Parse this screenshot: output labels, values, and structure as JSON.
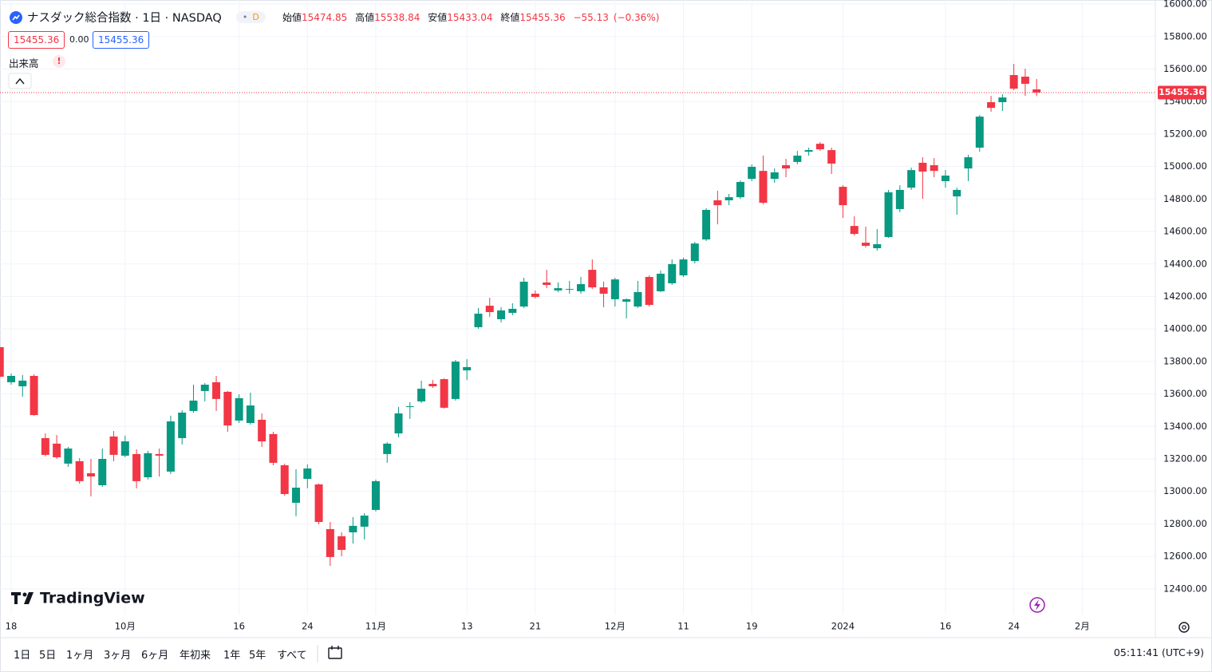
{
  "header": {
    "symbol": "ナスダック総合指数 · 1日 · NASDAQ",
    "interval_badge": "D",
    "open_label": "始値",
    "open": "15474.85",
    "high_label": "高値",
    "high": "15538.84",
    "low_label": "安値",
    "low": "15433.04",
    "close_label": "終値",
    "close": "15455.36",
    "change": "−55.13",
    "change_pct": "(−0.36%)"
  },
  "order_boxes": [
    "15455.36",
    "0.00",
    "15455.36"
  ],
  "volume_label": "出来高",
  "volume_warning": "!",
  "logo": "TradingView",
  "ranges": [
    "1日",
    "5日",
    "1ヶ月",
    "3ヶ月",
    "6ヶ月",
    "年初来",
    "1年",
    "5年",
    "すべて"
  ],
  "clock": "05:11:41 (UTC+9)",
  "chart_data": {
    "type": "candlestick",
    "categories": [
      null,
      "18",
      null,
      null,
      null,
      null,
      null,
      null,
      null,
      null,
      null,
      "10月",
      null,
      null,
      null,
      null,
      null,
      null,
      null,
      null,
      null,
      "16",
      null,
      null,
      null,
      null,
      null,
      "24",
      null,
      null,
      null,
      null,
      null,
      "11月",
      null,
      null,
      null,
      null,
      null,
      null,
      null,
      "13",
      null,
      null,
      null,
      null,
      null,
      "21",
      null,
      null,
      null,
      null,
      null,
      null,
      "12月",
      null,
      null,
      null,
      null,
      null,
      "11",
      null,
      null,
      null,
      null,
      null,
      "19",
      null,
      null,
      null,
      null,
      null,
      null,
      null,
      "2024",
      null,
      null,
      null,
      null,
      null,
      null,
      null,
      null,
      "16",
      null,
      null,
      null,
      null,
      null,
      "24",
      null,
      null,
      null,
      null,
      null,
      "2月"
    ],
    "open": [
      13888,
      13672,
      13647,
      13711,
      13328,
      13294,
      13171,
      13186,
      13112,
      13038,
      13338,
      13220,
      13230,
      13087,
      13230,
      13122,
      13328,
      13495,
      13618,
      13672,
      13613,
      13436,
      13421,
      13441,
      13353,
      13161,
      12930,
      13077,
      13043,
      12768,
      12724,
      12748,
      12783,
      12886,
      13230,
      13357,
      13520,
      13554,
      13662,
      13691,
      13569,
      13745,
      14011,
      14143,
      14060,
      14099,
      14138,
      14217,
      14286,
      14237,
      14242,
      14232,
      14364,
      14256,
      14183,
      14168,
      14138,
      14320,
      14232,
      14281,
      14330,
      14418,
      14551,
      14792,
      14792,
      14811,
      14924,
      14973,
      14924,
      15008,
      15028,
      15091,
      15140,
      15101,
      14875,
      14634,
      14531,
      14497,
      14566,
      14738,
      14870,
      15023,
      15008,
      14910,
      14816,
      14988,
      15116,
      15396,
      15396,
      15563,
      15553,
      15474.85,
      null,
      null,
      null,
      null
    ],
    "high": [
      13890,
      13726,
      13716,
      13721,
      13357,
      13347,
      13274,
      13205,
      13200,
      13264,
      13372,
      13343,
      13259,
      13249,
      13264,
      13466,
      13500,
      13657,
      13667,
      13711,
      13618,
      13598,
      13608,
      13480,
      13367,
      13171,
      13136,
      13166,
      13048,
      12812,
      12748,
      12842,
      12866,
      13073,
      13303,
      13520,
      13549,
      13682,
      13686,
      13696,
      13809,
      13814,
      14129,
      14192,
      14134,
      14158,
      14315,
      14237,
      14364,
      14286,
      14296,
      14320,
      14428,
      14291,
      14315,
      14188,
      14296,
      14330,
      14359,
      14428,
      14438,
      14536,
      14743,
      14851,
      14831,
      14914,
      15013,
      15067,
      14988,
      15047,
      15096,
      15116,
      15150,
      15116,
      14885,
      14693,
      14630,
      14615,
      14856,
      14885,
      14993,
      15057,
      15052,
      14978,
      14870,
      15072,
      15317,
      15435,
      15445,
      15632,
      15602,
      15538.84,
      null,
      null,
      null,
      null
    ],
    "low": [
      13700,
      13657,
      13583,
      13466,
      13215,
      13200,
      13151,
      13048,
      12969,
      13028,
      13186,
      13210,
      13019,
      13073,
      13092,
      13107,
      13289,
      13485,
      13554,
      13495,
      13367,
      13421,
      13411,
      13274,
      13161,
      12974,
      12847,
      13019,
      12797,
      12542,
      12601,
      12679,
      12704,
      12876,
      13176,
      13333,
      13446,
      13544,
      13637,
      13510,
      13559,
      13686,
      14001,
      14074,
      14040,
      14084,
      14129,
      14188,
      14251,
      14227,
      14217,
      14217,
      14246,
      14134,
      14138,
      14065,
      14129,
      14138,
      14227,
      14271,
      14320,
      14404,
      14541,
      14644,
      14762,
      14801,
      14910,
      14767,
      14900,
      14934,
      15013,
      15067,
      15096,
      14954,
      14684,
      14576,
      14502,
      14482,
      14561,
      14718,
      14856,
      14801,
      14934,
      14870,
      14703,
      14910,
      15091,
      15337,
      15342,
      15470,
      15435,
      15433.04,
      null,
      null,
      null,
      null
    ],
    "close": [
      13706,
      13711,
      13682,
      13470,
      13225,
      13210,
      13264,
      13063,
      13092,
      13200,
      13225,
      13308,
      13063,
      13235,
      13220,
      13431,
      13485,
      13559,
      13657,
      13569,
      13406,
      13574,
      13529,
      13308,
      13176,
      12984,
      13023,
      13141,
      12812,
      12596,
      12640,
      12788,
      12851,
      13063,
      13294,
      13480,
      13524,
      13632,
      13647,
      13515,
      13799,
      13765,
      14094,
      14104,
      14114,
      14124,
      14291,
      14197,
      14271,
      14251,
      14246,
      14276,
      14256,
      14217,
      14305,
      14183,
      14227,
      14148,
      14340,
      14399,
      14428,
      14526,
      14733,
      14762,
      14811,
      14905,
      14998,
      14777,
      14964,
      14988,
      15067,
      15101,
      15106,
      15018,
      14762,
      14585,
      14512,
      14522,
      14841,
      14856,
      14978,
      14969,
      14973,
      14944,
      14856,
      15057,
      15307,
      15361,
      15425,
      15479,
      15509,
      15455.36,
      null,
      null,
      null,
      null
    ],
    "up_color": "#089981",
    "down_color": "#f23645",
    "ylim": [
      12242,
      16025
    ],
    "yticks": [
      {
        "value": 12400,
        "label": "12400.00"
      },
      {
        "value": 12600,
        "label": "12600.00"
      },
      {
        "value": 12800,
        "label": "12800.00"
      },
      {
        "value": 13000,
        "label": "13000.00"
      },
      {
        "value": 13200,
        "label": "13200.00"
      },
      {
        "value": 13400,
        "label": "13400.00"
      },
      {
        "value": 13600,
        "label": "13600.00"
      },
      {
        "value": 13800,
        "label": "13800.00"
      },
      {
        "value": 14000,
        "label": "14000.00"
      },
      {
        "value": 14200,
        "label": "14200.00"
      },
      {
        "value": 14400,
        "label": "14400.00"
      },
      {
        "value": 14600,
        "label": "14600.00"
      },
      {
        "value": 14800,
        "label": "14800.00"
      },
      {
        "value": 15000,
        "label": "15000.00"
      },
      {
        "value": 15200,
        "label": "15200.00"
      },
      {
        "value": 15400,
        "label": "15400.00"
      },
      {
        "value": 15600,
        "label": "15600.00"
      },
      {
        "value": 15800,
        "label": "15800.00"
      },
      {
        "value": 16000,
        "label": "16000.00"
      }
    ],
    "price_line": {
      "value": 15455.36,
      "label": "15455.36"
    },
    "grid": true
  }
}
